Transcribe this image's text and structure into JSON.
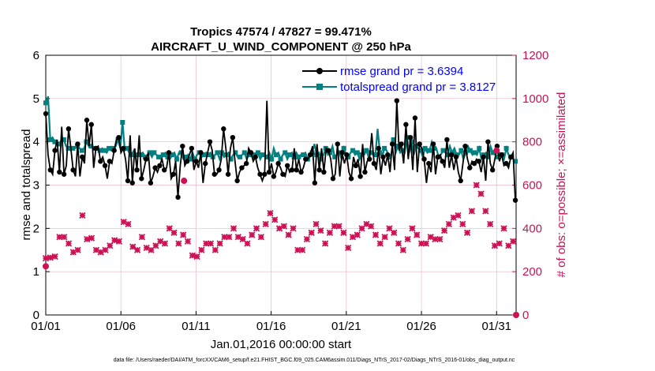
{
  "chart_data": {
    "type": "line",
    "title": "Tropics 47574 / 47827 = 99.471%",
    "subtitle": "AIRCRAFT_U_WIND_COMPONENT @ 250 hPa",
    "xlabel": "Jan.01,2016 00:00:00 start",
    "ylabel_left": "rmse and totalspread",
    "ylabel_right": "# of obs: o=possible; ×=assimilated",
    "footnote": "data file: /Users/raeder/DAI/ATM_forcXX/CAM6_setup/f.e21.FHIST_BGC.f09_025.CAM6assim.011/Diags_NTrS_2017-02/Diags_NTrS_2016-01/obs_diag_output.nc",
    "xlim": [
      1,
      32.3
    ],
    "ylim_left": [
      0,
      6
    ],
    "ylim_right": [
      0,
      1200
    ],
    "x_ticks": [
      1,
      6,
      11,
      16,
      21,
      26,
      31
    ],
    "x_tick_labels": [
      "01/01",
      "01/06",
      "01/11",
      "01/16",
      "01/21",
      "01/26",
      "01/31"
    ],
    "y_ticks_left": [
      "0",
      "1",
      "2",
      "3",
      "4",
      "5",
      "6"
    ],
    "y_ticks_right": [
      "0",
      "200",
      "400",
      "600",
      "800",
      "1000",
      "1200"
    ],
    "colors": {
      "rmse": "#000000",
      "spread": "#008080",
      "obs": "#cc1155",
      "legend_text": "#0000ff",
      "grid": "#e8b8c8"
    },
    "series": [
      {
        "name": "rmse grand pr = 3.6394",
        "axis": "left",
        "color": "#000000",
        "marker": "circle",
        "values": [
          4.65,
          3.7,
          3.35,
          3.25,
          3.8,
          4.05,
          3.3,
          4.35,
          3.25,
          3.45,
          4.3,
          3.85,
          3.35,
          3.2,
          3.95,
          3.2,
          3.65,
          3.5,
          4.5,
          3.9,
          4.4,
          3.4,
          3.85,
          3.9,
          3.55,
          3.65,
          3.45,
          3.15,
          3.55,
          3.5,
          3.8,
          4.05,
          4.1,
          3.75,
          3.85,
          3.6,
          3.1,
          4.15,
          3.05,
          3.85,
          3.35,
          4.15,
          3.15,
          3.35,
          3.6,
          3.75,
          3.05,
          3.2,
          3.4,
          3.3,
          3.45,
          3.6,
          3.35,
          3.4,
          3.75,
          3.15,
          3.25,
          3.55,
          2.72,
          3.45,
          3.9,
          3.45,
          3.55,
          3.7,
          3.85,
          3.35,
          3.55,
          3.4,
          3.75,
          3.05,
          3.5,
          3.75,
          4.0,
          3.8,
          3.25,
          3.25,
          3.35,
          3.6,
          4.3,
          3.85,
          3.25,
          3.85,
          4.1,
          3.55,
          3.1,
          3.3,
          3.4,
          3.45,
          3.5,
          3.85,
          3.75,
          3.55,
          3.65,
          3.4,
          3.25,
          3.1,
          3.25,
          4.95,
          3.3,
          3.5,
          3.2,
          3.3,
          3.5,
          3.4,
          3.25,
          3.2,
          3.45,
          3.3,
          3.35,
          3.85,
          3.35,
          3.6,
          3.3,
          3.4,
          3.6,
          3.6,
          3.7,
          3.9,
          3.05,
          3.95,
          3.35,
          3.85,
          3.3,
          3.85,
          3.8,
          3.6,
          3.15,
          3.25,
          3.95,
          3.2,
          3.75,
          3.5,
          3.7,
          3.3,
          3.15,
          3.65,
          3.45,
          3.6,
          3.2,
          3.95,
          3.3,
          3.55,
          3.6,
          4.2,
          3.5,
          3.35,
          3.85,
          3.25,
          3.65,
          3.45,
          3.7,
          3.3,
          3.95,
          3.35,
          4.95,
          3.8,
          3.95,
          3.5,
          4.4,
          3.6,
          4.1,
          3.35,
          4.55,
          3.3,
          3.95,
          3.85,
          3.6,
          3.05,
          3.5,
          3.3,
          3.95,
          3.25,
          3.65,
          3.7,
          3.55,
          3.4,
          4.05,
          3.4,
          3.7,
          3.35,
          3.65,
          3.3,
          3.1,
          3.5,
          3.9,
          3.6,
          3.4,
          3.55,
          3.5,
          3.6,
          3.55,
          3.3,
          3.65,
          3.1,
          4.0,
          3.5,
          3.35,
          3.6,
          3.9,
          3.55,
          3.7,
          3.45,
          3.5,
          3.4,
          3.65,
          3.75,
          2.65
        ]
      },
      {
        "name": "totalspread grand pr = 3.8127",
        "axis": "left",
        "color": "#008080",
        "marker": "square",
        "values": [
          4.9,
          5.05,
          4.05,
          4.1,
          4.0,
          3.95,
          3.95,
          4.05,
          4.05,
          3.9,
          3.85,
          3.8,
          3.85,
          3.85,
          3.9,
          3.85,
          3.8,
          3.85,
          4.0,
          3.9,
          3.9,
          3.85,
          3.85,
          3.85,
          3.8,
          3.85,
          3.8,
          3.75,
          3.85,
          3.8,
          3.85,
          3.9,
          4.05,
          3.85,
          4.45,
          3.8,
          3.85,
          3.75,
          3.7,
          3.8,
          3.7,
          3.75,
          3.7,
          3.75,
          3.65,
          3.7,
          3.75,
          3.65,
          3.75,
          3.7,
          3.65,
          3.6,
          3.7,
          3.75,
          3.65,
          3.6,
          3.7,
          3.75,
          3.6,
          3.75,
          3.75,
          3.6,
          3.65,
          3.7,
          3.6,
          3.75,
          3.6,
          3.7,
          3.75,
          3.65,
          3.7,
          3.75,
          3.7,
          3.75,
          3.65,
          3.7,
          3.75,
          3.6,
          3.75,
          3.65,
          3.7,
          3.75,
          3.6,
          3.7,
          3.75,
          3.65,
          3.65,
          3.7,
          3.75,
          3.6,
          3.7,
          3.75,
          3.7,
          3.65,
          3.75,
          3.6,
          3.7,
          3.7,
          3.65,
          3.75,
          3.6,
          3.85,
          3.7,
          3.75,
          3.6,
          3.7,
          3.75,
          3.6,
          3.7,
          3.75,
          3.65,
          3.75,
          3.65,
          3.7,
          3.7,
          3.75,
          3.6,
          3.7,
          3.75,
          3.95,
          3.7,
          3.75,
          3.6,
          3.7,
          3.85,
          3.7,
          3.75,
          3.9,
          3.65,
          3.7,
          3.75,
          3.6,
          3.85,
          3.7,
          3.65,
          3.75,
          3.8,
          3.7,
          3.75,
          3.6,
          3.7,
          3.7,
          3.8,
          3.65,
          3.75,
          3.7,
          3.7,
          4.3,
          3.75,
          3.65,
          3.85,
          3.8,
          3.65,
          3.7,
          4.05,
          3.75,
          3.9,
          3.75,
          3.8,
          3.75,
          4.1,
          3.75,
          4.0,
          3.7,
          3.9,
          3.85,
          3.8,
          3.65,
          3.85,
          3.75,
          3.8,
          4.0,
          3.85,
          3.85,
          3.65,
          3.7,
          3.8,
          3.75,
          3.7,
          3.9,
          3.75,
          3.85,
          3.7,
          3.7,
          3.8,
          3.6,
          3.75,
          3.9,
          3.8,
          3.7,
          3.75,
          3.7,
          3.85,
          3.6,
          3.7,
          3.75,
          3.65,
          3.9,
          3.75,
          3.7,
          3.65,
          3.75,
          3.7,
          3.6,
          3.85,
          3.7,
          3.65,
          3.6,
          3.55
        ]
      },
      {
        "name": "assimilated",
        "axis": "right",
        "color": "#cc1155",
        "marker": "cross",
        "values": [
          262,
          265,
          265,
          310,
          270,
          360,
          360,
          370,
          360,
          345,
          330,
          305,
          290,
          295,
          300,
          465,
          460,
          450,
          350,
          360,
          355,
          310,
          300,
          290,
          290,
          270,
          300,
          340,
          320,
          380,
          345,
          330,
          340,
          460,
          430,
          440,
          420,
          390,
          315,
          310,
          300,
          360,
          360,
          360,
          310,
          295,
          300,
          295,
          320,
          340,
          340,
          360,
          330,
          380,
          400,
          370,
          380,
          320,
          330,
          370,
          370,
          350,
          340,
          300,
          275,
          280,
          270,
          280,
          300,
          280,
          330,
          320,
          330,
          300,
          300,
          280,
          330,
          380,
          360,
          330,
          360,
          380,
          400,
          390,
          360,
          340,
          350,
          365,
          330,
          340,
          370,
          390,
          400,
          380,
          360,
          400,
          420,
          450,
          470,
          470,
          440,
          410,
          400,
          390,
          410,
          380,
          370,
          400,
          400,
          410,
          300,
          300,
          300,
          330,
          350,
          380,
          380,
          400,
          420,
          420,
          390,
          380,
          330,
          350,
          380,
          390,
          410,
          420,
          410,
          400,
          380,
          320,
          310,
          350,
          360,
          350,
          370,
          390,
          400,
          400,
          420,
          430,
          410,
          390,
          370,
          340,
          330,
          330,
          360,
          370,
          400,
          410,
          380,
          360,
          330,
          300,
          300,
          300,
          350,
          370,
          400,
          410,
          370,
          350,
          330,
          320,
          330,
          360,
          360,
          380,
          350,
          340,
          350,
          380,
          390,
          400,
          420,
          430,
          450,
          450,
          460,
          440,
          420,
          400,
          380,
          430,
          480,
          520,
          600,
          620,
          560,
          500,
          480,
          440,
          420,
          390,
          320,
          320,
          330,
          360,
          400,
          410,
          320,
          300,
          340,
          360
        ]
      }
    ]
  }
}
